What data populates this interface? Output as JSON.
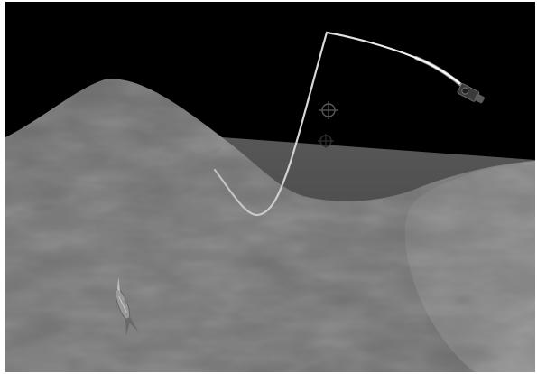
{
  "viewport": {
    "background": "#000000",
    "frame_color": "#ffffff"
  },
  "scene": {
    "terrain_near_color": "#6f6f6f",
    "terrain_far_color": "#4a4a4a",
    "terrain_hill_color": "#7a7a7a",
    "camera_path_color": "#f2f2f2",
    "icons": [
      "camera-icon",
      "crosshair-target-icon",
      "crosshair-shadow-icon",
      "fish-figure-icon"
    ]
  }
}
